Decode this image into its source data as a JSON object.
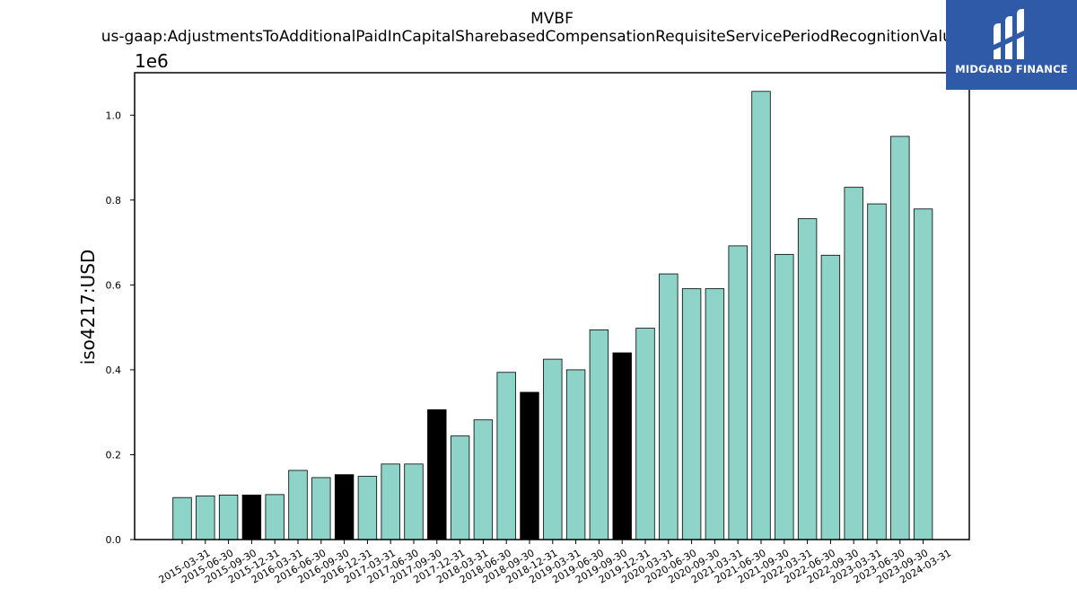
{
  "chart_data": {
    "type": "bar",
    "title_lines": [
      "MVBF",
      "us-gaap:AdjustmentsToAdditionalPaidInCapitalSharebasedCompensationRequisiteServicePeriodRecognitionValue"
    ],
    "ylabel": "iso4217:USD",
    "xlabel": "",
    "offset_text": "1e6",
    "ylim": [
      0,
      1.1
    ],
    "yticks": [
      "0.0",
      "0.2",
      "0.4",
      "0.6",
      "0.8",
      "1.0"
    ],
    "grid": false,
    "categories": [
      "2015-03-31",
      "2015-06-30",
      "2015-09-30",
      "2015-12-31",
      "2016-03-31",
      "2016-06-30",
      "2016-09-30",
      "2016-12-31",
      "2017-03-31",
      "2017-06-30",
      "2017-09-30",
      "2017-12-31",
      "2018-03-31",
      "2018-06-30",
      "2018-09-30",
      "2018-12-31",
      "2019-03-31",
      "2019-06-30",
      "2019-09-30",
      "2019-12-31",
      "2020-03-31",
      "2020-06-30",
      "2020-09-30",
      "2021-03-31",
      "2021-06-30",
      "2021-09-30",
      "2022-03-31",
      "2022-06-30",
      "2022-09-30",
      "2023-03-31",
      "2023-06-30",
      "2023-09-30",
      "2024-03-31"
    ],
    "values": [
      0.099,
      0.103,
      0.105,
      0.105,
      0.106,
      0.163,
      0.146,
      0.153,
      0.149,
      0.178,
      0.178,
      0.306,
      0.244,
      0.282,
      0.394,
      0.347,
      0.425,
      0.4,
      0.494,
      0.44,
      0.498,
      0.626,
      0.591,
      0.591,
      0.692,
      1.056,
      0.672,
      0.756,
      0.67,
      0.83,
      0.791,
      0.95,
      0.779
    ],
    "bar_colors": [
      "#8dd3c7",
      "#8dd3c7",
      "#8dd3c7",
      "#000000",
      "#8dd3c7",
      "#8dd3c7",
      "#8dd3c7",
      "#000000",
      "#8dd3c7",
      "#8dd3c7",
      "#8dd3c7",
      "#000000",
      "#8dd3c7",
      "#8dd3c7",
      "#8dd3c7",
      "#000000",
      "#8dd3c7",
      "#8dd3c7",
      "#8dd3c7",
      "#000000",
      "#8dd3c7",
      "#8dd3c7",
      "#8dd3c7",
      "#8dd3c7",
      "#8dd3c7",
      "#8dd3c7",
      "#8dd3c7",
      "#8dd3c7",
      "#8dd3c7",
      "#8dd3c7",
      "#8dd3c7",
      "#8dd3c7",
      "#8dd3c7"
    ]
  },
  "logo": {
    "text": "MIDGARD FINANCE",
    "background": "#2f5aa8",
    "icon": "midgard-logo-mark"
  }
}
